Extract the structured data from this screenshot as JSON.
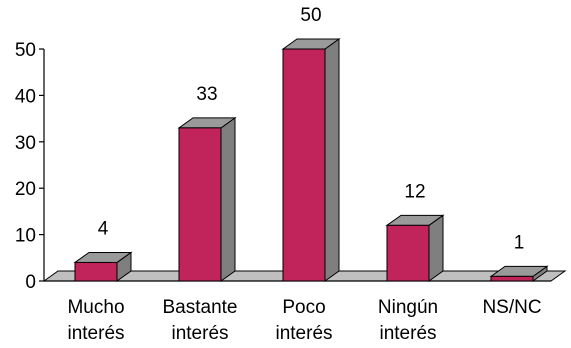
{
  "chart_data": {
    "type": "bar",
    "style": "3d",
    "categories": [
      [
        "Mucho",
        "interés"
      ],
      [
        "Bastante",
        "interés"
      ],
      [
        "Poco",
        "interés"
      ],
      [
        "Ningún",
        "interés"
      ],
      [
        "NS/NC"
      ]
    ],
    "values": [
      4,
      33,
      50,
      12,
      1
    ],
    "data_labels": [
      "4",
      "33",
      "50",
      "12",
      "1"
    ],
    "ylim": [
      0,
      50
    ],
    "yticks": [
      "0",
      "10",
      "20",
      "30",
      "40",
      "50"
    ],
    "title": "",
    "xlabel": "",
    "ylabel": "",
    "grid": false,
    "legend": "none",
    "colors": {
      "bar_front": "#C0245A",
      "bar_side": "#7F7F7F",
      "bar_top": "#9A9A9A",
      "floor": "#BFBFBF",
      "axis": "#000000"
    }
  }
}
